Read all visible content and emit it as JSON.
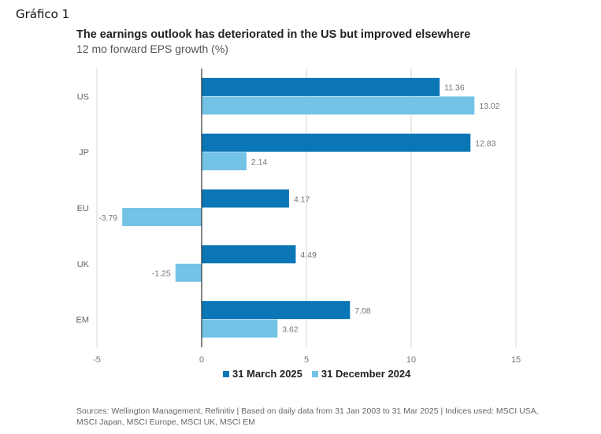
{
  "page_label": "Gráfico 1",
  "chart_data": {
    "type": "bar",
    "orientation": "horizontal",
    "title": "The earnings outlook has deteriorated in the US but improved elsewhere",
    "subtitle": "12 mo forward EPS growth (%)",
    "categories": [
      "US",
      "JP",
      "EU",
      "UK",
      "EM"
    ],
    "series": [
      {
        "name": "31 March 2025",
        "color": "#0a76b6",
        "values": [
          11.36,
          12.83,
          4.17,
          4.49,
          7.08
        ]
      },
      {
        "name": "31 December 2024",
        "color": "#73c3e6",
        "values": [
          13.02,
          2.14,
          -3.79,
          -1.25,
          3.62
        ]
      }
    ],
    "xlim": [
      -5,
      15
    ],
    "xticks": [
      -5,
      0,
      5,
      10,
      15
    ],
    "xtick_labels": [
      "-5",
      "0",
      "5",
      "10",
      "15"
    ],
    "grid": true,
    "legend_position": "bottom"
  },
  "source": "Sources: Wellington Management, Refinitiv  |  Based on daily data from 31 Jan 2003 to 31 Mar 2025  |  Indices used: MSCI USA, MSCI Japan, MSCI Europe, MSCI UK, MSCI EM"
}
